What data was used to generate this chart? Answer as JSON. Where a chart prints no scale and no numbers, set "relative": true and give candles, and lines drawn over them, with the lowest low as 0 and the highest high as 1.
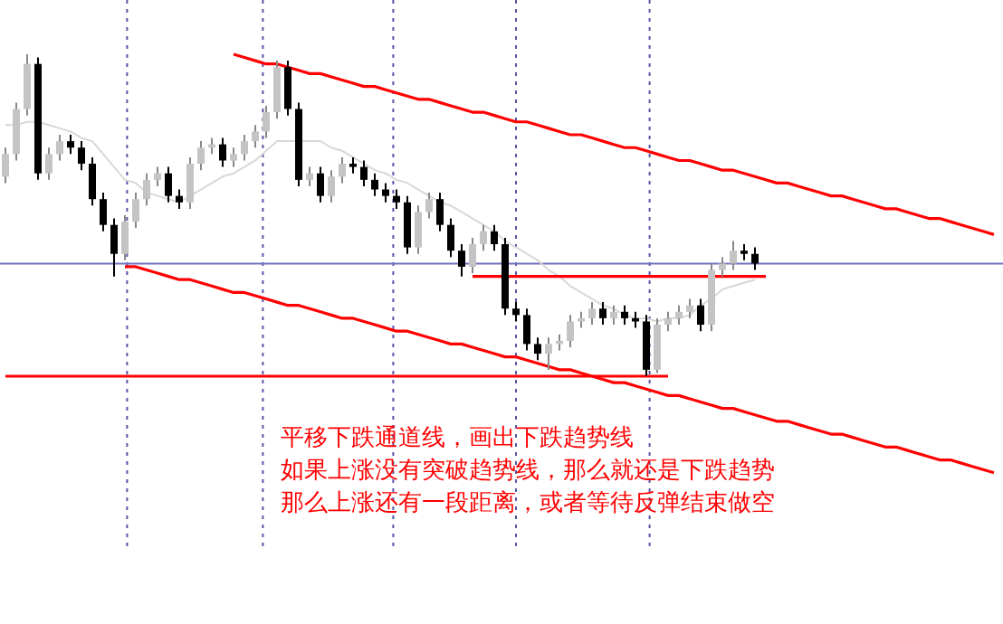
{
  "chart_data": {
    "type": "candlestick",
    "relative": true,
    "categories": [
      null,
      null,
      null,
      null,
      null,
      null,
      null,
      null,
      null,
      null,
      null,
      null,
      null,
      null,
      null,
      null,
      null,
      null,
      null,
      null,
      null,
      null,
      null,
      null,
      null,
      null,
      null,
      null,
      null,
      null,
      null,
      null,
      null,
      null,
      null,
      null,
      null,
      null,
      null,
      null,
      null,
      null,
      null,
      null,
      null,
      null,
      null,
      null,
      null,
      null,
      null,
      null,
      null,
      null,
      null,
      null,
      null,
      null,
      null,
      null,
      null,
      null,
      null,
      null,
      null,
      null,
      null,
      null,
      null,
      null,
      null,
      null,
      null,
      null,
      null,
      null,
      null,
      null,
      null,
      null,
      null,
      null,
      null,
      null,
      null,
      null,
      null,
      null,
      null,
      null,
      null,
      null
    ],
    "ohlc": [
      [
        0.62,
        0.71,
        0.6,
        0.69
      ],
      [
        0.69,
        0.85,
        0.67,
        0.83
      ],
      [
        0.83,
        1,
        0.81,
        0.97
      ],
      [
        0.97,
        0.99,
        0.61,
        0.63
      ],
      [
        0.63,
        0.71,
        0.61,
        0.69
      ],
      [
        0.69,
        0.75,
        0.67,
        0.73
      ],
      [
        0.73,
        0.75,
        0.69,
        0.71
      ],
      [
        0.71,
        0.73,
        0.64,
        0.66
      ],
      [
        0.66,
        0.68,
        0.53,
        0.55
      ],
      [
        0.55,
        0.57,
        0.45,
        0.47
      ],
      [
        0.47,
        0.49,
        0.31,
        0.38
      ],
      [
        0.38,
        0.5,
        0.36,
        0.48
      ],
      [
        0.48,
        0.57,
        0.46,
        0.55
      ],
      [
        0.55,
        0.63,
        0.53,
        0.61
      ],
      [
        0.61,
        0.65,
        0.59,
        0.63
      ],
      [
        0.63,
        0.65,
        0.54,
        0.56
      ],
      [
        0.56,
        0.58,
        0.52,
        0.54
      ],
      [
        0.54,
        0.68,
        0.52,
        0.66
      ],
      [
        0.66,
        0.73,
        0.64,
        0.71
      ],
      [
        0.71,
        0.74,
        0.69,
        0.72
      ],
      [
        0.72,
        0.74,
        0.65,
        0.67
      ],
      [
        0.67,
        0.71,
        0.65,
        0.69
      ],
      [
        0.69,
        0.75,
        0.67,
        0.73
      ],
      [
        0.73,
        0.78,
        0.71,
        0.76
      ],
      [
        0.76,
        0.84,
        0.74,
        0.82
      ],
      [
        0.82,
        0.98,
        0.8,
        0.96
      ],
      [
        0.96,
        0.98,
        0.81,
        0.83
      ],
      [
        0.83,
        0.85,
        0.59,
        0.61
      ],
      [
        0.61,
        0.65,
        0.59,
        0.63
      ],
      [
        0.63,
        0.65,
        0.54,
        0.56
      ],
      [
        0.56,
        0.64,
        0.54,
        0.62
      ],
      [
        0.62,
        0.68,
        0.6,
        0.66
      ],
      [
        0.66,
        0.68,
        0.63,
        0.65
      ],
      [
        0.65,
        0.67,
        0.59,
        0.61
      ],
      [
        0.61,
        0.63,
        0.56,
        0.58
      ],
      [
        0.58,
        0.6,
        0.54,
        0.56
      ],
      [
        0.56,
        0.58,
        0.52,
        0.54
      ],
      [
        0.54,
        0.56,
        0.38,
        0.4
      ],
      [
        0.4,
        0.53,
        0.38,
        0.51
      ],
      [
        0.51,
        0.57,
        0.49,
        0.55
      ],
      [
        0.55,
        0.57,
        0.45,
        0.47
      ],
      [
        0.47,
        0.49,
        0.37,
        0.39
      ],
      [
        0.39,
        0.41,
        0.31,
        0.34
      ],
      [
        0.34,
        0.43,
        0.32,
        0.41
      ],
      [
        0.41,
        0.47,
        0.39,
        0.45
      ],
      [
        0.45,
        0.47,
        0.39,
        0.41
      ],
      [
        0.41,
        0.43,
        0.19,
        0.21
      ],
      [
        0.21,
        0.23,
        0.17,
        0.19
      ],
      [
        0.19,
        0.21,
        0.08,
        0.1
      ],
      [
        0.1,
        0.12,
        0.05,
        0.07
      ],
      [
        0.07,
        0.12,
        0.02,
        0.1
      ],
      [
        0.1,
        0.13,
        0.08,
        0.11
      ],
      [
        0.11,
        0.19,
        0.09,
        0.17
      ],
      [
        0.17,
        0.2,
        0.15,
        0.18
      ],
      [
        0.18,
        0.23,
        0.16,
        0.21
      ],
      [
        0.21,
        0.23,
        0.16,
        0.18
      ],
      [
        0.18,
        0.22,
        0.16,
        0.2
      ],
      [
        0.2,
        0.22,
        0.16,
        0.18
      ],
      [
        0.18,
        0.2,
        0.15,
        0.17
      ],
      [
        0.17,
        0.19,
        0,
        0.02
      ],
      [
        0.02,
        0.18,
        0.01,
        0.16
      ],
      [
        0.16,
        0.2,
        0.14,
        0.18
      ],
      [
        0.18,
        0.22,
        0.16,
        0.2
      ],
      [
        0.2,
        0.24,
        0.18,
        0.22
      ],
      [
        0.22,
        0.24,
        0.14,
        0.16
      ],
      [
        0.16,
        0.35,
        0.14,
        0.33
      ],
      [
        0.33,
        0.37,
        0.31,
        0.35
      ],
      [
        0.35,
        0.42,
        0.33,
        0.39
      ],
      [
        0.39,
        0.41,
        0.36,
        0.38
      ],
      [
        0.38,
        0.4,
        0.33,
        0.35
      ],
      null,
      null,
      null,
      null,
      null,
      null,
      null,
      null,
      null,
      null,
      null,
      null,
      null,
      null,
      null,
      null,
      null,
      null,
      null,
      null,
      null,
      null
    ],
    "series": [
      {
        "type": "line",
        "color": "#d8d8d8",
        "values": [
          0.78,
          0.78,
          0.79,
          0.79,
          0.78,
          0.77,
          0.76,
          0.74,
          0.73,
          0.69,
          0.65,
          0.61,
          0.6,
          0.57,
          0.56,
          0.55,
          0.54,
          0.56,
          0.58,
          0.6,
          0.62,
          0.63,
          0.65,
          0.67,
          0.7,
          0.73,
          0.73,
          0.73,
          0.73,
          0.73,
          0.71,
          0.7,
          0.68,
          0.66,
          0.64,
          0.63,
          0.61,
          0.6,
          0.58,
          0.56,
          0.54,
          0.53,
          0.51,
          0.49,
          0.47,
          0.45,
          0.42,
          0.4,
          0.38,
          0.36,
          0.33,
          0.31,
          0.28,
          0.26,
          0.24,
          0.22,
          0.21,
          0.19,
          0.18,
          0.18,
          0.17,
          0.18,
          0.18,
          0.19,
          0.22,
          0.24,
          0.27,
          0.28,
          0.29,
          0.3,
          null,
          null,
          null,
          null,
          null,
          null,
          null,
          null,
          null,
          null,
          null,
          null,
          null,
          null,
          null,
          null,
          null,
          null,
          null,
          null,
          null,
          null
        ]
      },
      {
        "type": "line",
        "color": "#ff0000",
        "values": [
          null,
          null,
          null,
          null,
          null,
          null,
          null,
          null,
          null,
          null,
          null,
          null,
          null,
          null,
          null,
          null,
          null,
          null,
          null,
          null,
          null,
          1.0,
          0.99,
          0.98,
          0.97,
          0.97,
          0.96,
          0.95,
          0.94,
          0.94,
          0.93,
          0.92,
          0.91,
          0.9,
          0.9,
          0.89,
          0.88,
          0.87,
          0.86,
          0.86,
          0.85,
          0.84,
          0.83,
          0.82,
          0.82,
          0.81,
          0.8,
          0.79,
          0.79,
          0.78,
          0.77,
          0.76,
          0.75,
          0.75,
          0.74,
          0.73,
          0.72,
          0.71,
          0.71,
          0.7,
          0.69,
          0.68,
          0.67,
          0.67,
          0.66,
          0.65,
          0.64,
          0.64,
          0.63,
          0.62,
          0.61,
          0.6,
          0.6,
          0.59,
          0.58,
          0.57,
          0.56,
          0.56,
          0.55,
          0.54,
          0.53,
          0.52,
          0.52,
          0.51,
          0.5,
          0.49,
          0.49,
          0.48,
          0.47,
          0.46,
          0.45,
          0.44
        ]
      },
      {
        "type": "line",
        "color": "#ff0000",
        "values": [
          null,
          null,
          null,
          null,
          null,
          null,
          null,
          null,
          null,
          null,
          null,
          0.34,
          0.34,
          0.33,
          0.32,
          0.31,
          0.3,
          0.3,
          0.29,
          0.28,
          0.27,
          0.26,
          0.26,
          0.25,
          0.24,
          0.23,
          0.22,
          0.22,
          0.21,
          0.2,
          0.19,
          0.18,
          0.18,
          0.17,
          0.16,
          0.15,
          0.14,
          0.14,
          0.13,
          0.12,
          0.11,
          0.1,
          0.1,
          0.09,
          0.08,
          0.07,
          0.06,
          0.06,
          0.05,
          0.04,
          0.03,
          0.02,
          0.02,
          0.01,
          0.0,
          -0.01,
          -0.02,
          -0.02,
          -0.03,
          -0.04,
          -0.05,
          -0.06,
          -0.06,
          -0.07,
          -0.08,
          -0.09,
          -0.1,
          -0.1,
          -0.11,
          -0.12,
          -0.13,
          -0.14,
          -0.14,
          -0.15,
          -0.16,
          -0.17,
          -0.18,
          -0.18,
          -0.19,
          -0.2,
          -0.21,
          -0.22,
          -0.22,
          -0.23,
          -0.24,
          -0.25,
          -0.26,
          -0.26,
          -0.27,
          -0.28,
          -0.29,
          -0.3
        ]
      },
      {
        "type": "line",
        "color": "#ff0000",
        "values": [
          0,
          0,
          0,
          0,
          0,
          0,
          0,
          0,
          0,
          0,
          0,
          0,
          0,
          0,
          0,
          0,
          0,
          0,
          0,
          0,
          0,
          0,
          0,
          0,
          0,
          0,
          0,
          0,
          0,
          0,
          0,
          0,
          0,
          0,
          0,
          0,
          0,
          0,
          0,
          0,
          0,
          0,
          0,
          0,
          0,
          0,
          0,
          0,
          0,
          0,
          0,
          0,
          0,
          0,
          0,
          0,
          0,
          0,
          0,
          0,
          0,
          0,
          null,
          null,
          null,
          null,
          null,
          null,
          null,
          null,
          null,
          null,
          null,
          null,
          null,
          null,
          null,
          null,
          null,
          null,
          null,
          null,
          null,
          null,
          null,
          null,
          null,
          null,
          null,
          null,
          null,
          null
        ]
      },
      {
        "type": "line",
        "color": "#ff0000",
        "values": [
          null,
          null,
          null,
          null,
          null,
          null,
          null,
          null,
          null,
          null,
          null,
          null,
          null,
          null,
          null,
          null,
          null,
          null,
          null,
          null,
          null,
          null,
          null,
          null,
          null,
          null,
          null,
          null,
          null,
          null,
          null,
          null,
          null,
          null,
          null,
          null,
          null,
          null,
          null,
          null,
          null,
          null,
          null,
          0.31,
          0.31,
          0.31,
          0.31,
          0.31,
          0.31,
          0.31,
          0.31,
          0.31,
          0.31,
          0.31,
          0.31,
          0.31,
          0.31,
          0.31,
          0.31,
          0.31,
          0.31,
          0.31,
          0.31,
          0.31,
          0.31,
          0.31,
          0.31,
          0.31,
          0.31,
          0.31,
          0.31,
          null,
          null,
          null,
          null,
          null,
          null,
          null,
          null,
          null,
          null,
          null,
          null,
          null,
          null,
          null,
          null,
          null,
          null,
          null,
          null,
          null
        ]
      }
    ],
    "ref_lines": [
      {
        "axis": "y",
        "value": 0.35,
        "color": "#7070c0"
      }
    ],
    "annotations": [
      "平移下跌通道线，画出下跌趋势线",
      "如果上涨没有突破趋势线，那么就还是下跌趋势",
      "那么上涨还有一段距离，或者等待反弹结束做空"
    ]
  }
}
